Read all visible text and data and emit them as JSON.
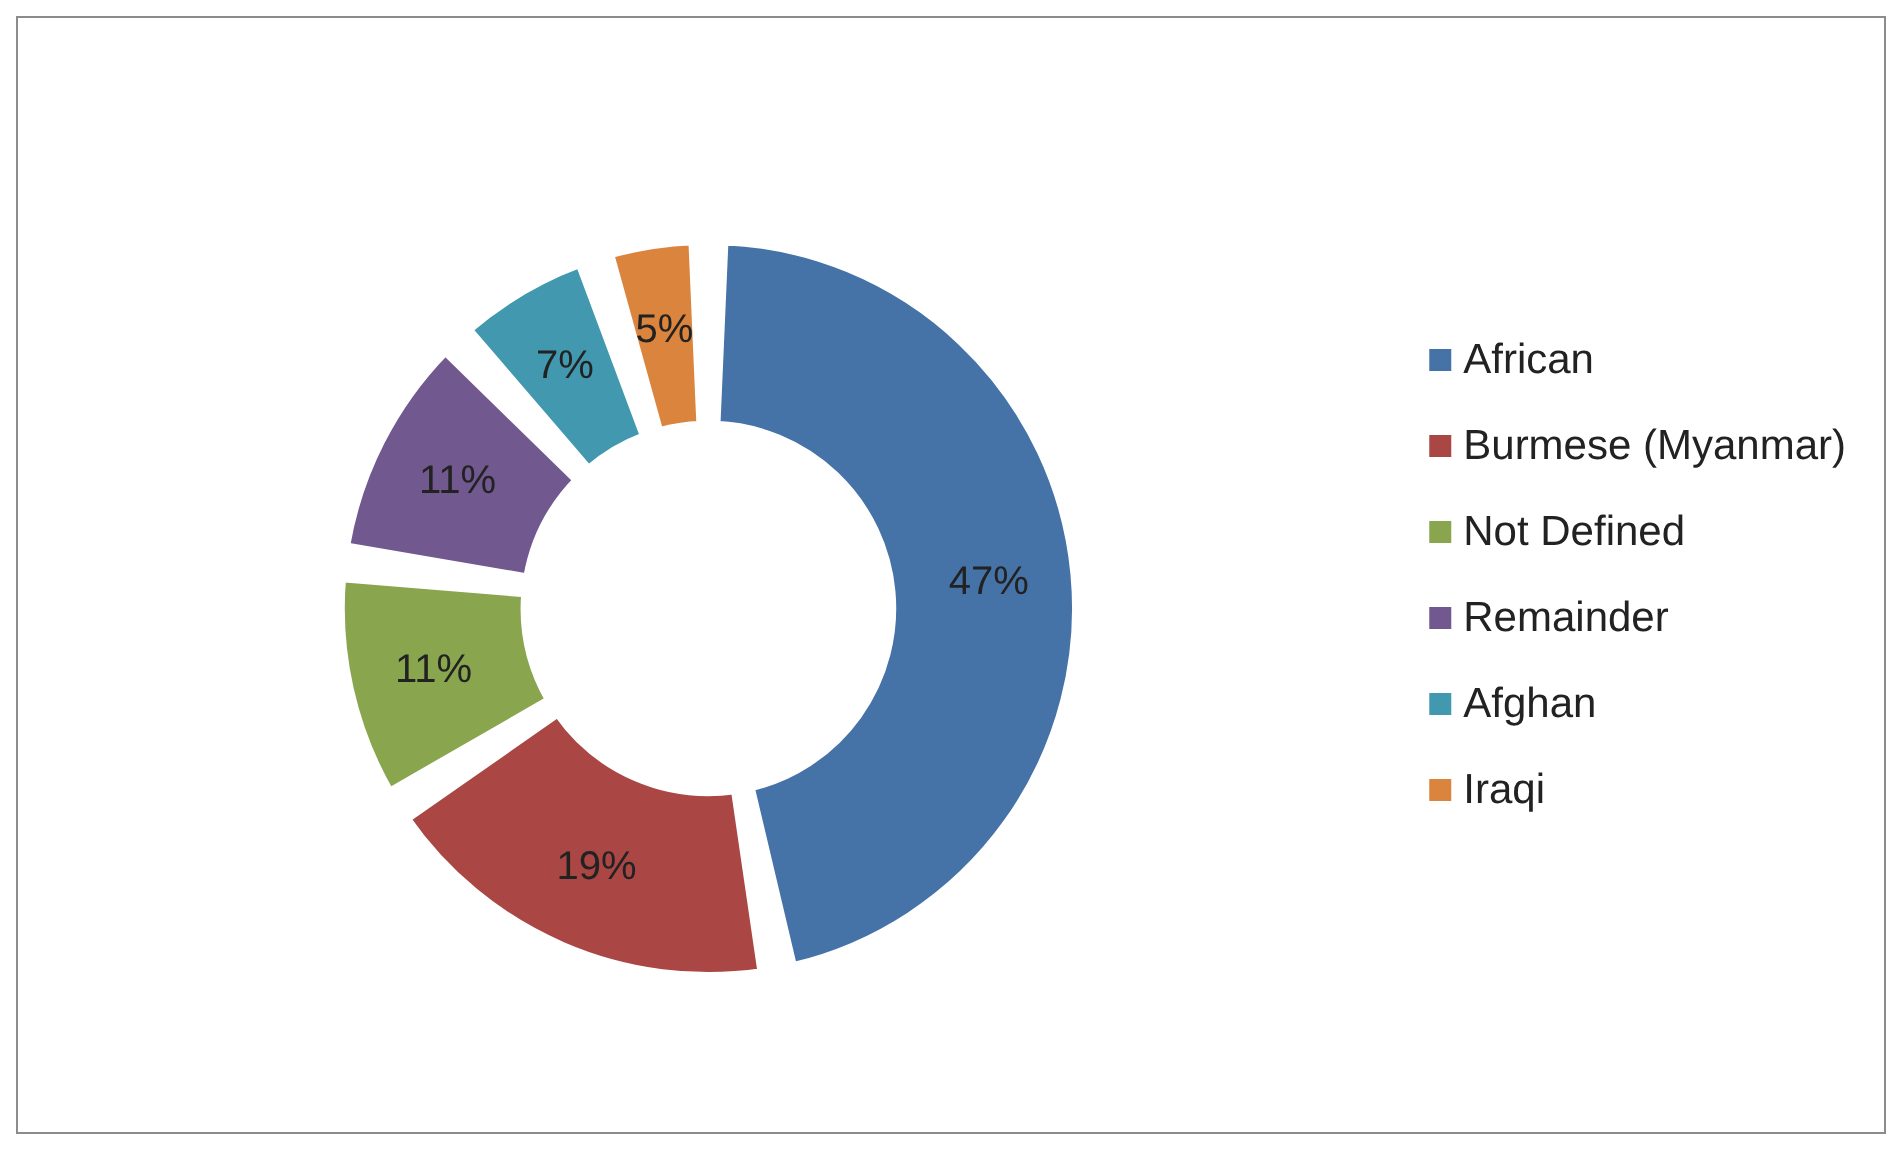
{
  "chart_data": {
    "type": "donut",
    "categories": [
      "African",
      "Burmese (Myanmar)",
      "Not Defined",
      "Remainder",
      "Afghan",
      "Iraqi"
    ],
    "values": [
      47,
      19,
      11,
      11,
      7,
      5
    ],
    "value_labels": [
      "47%",
      "19%",
      "11%",
      "11%",
      "7%",
      "5%"
    ],
    "colors": [
      "#4572a7",
      "#aa4643",
      "#89a54e",
      "#71588f",
      "#4198af",
      "#db843d"
    ],
    "legend": "right"
  }
}
